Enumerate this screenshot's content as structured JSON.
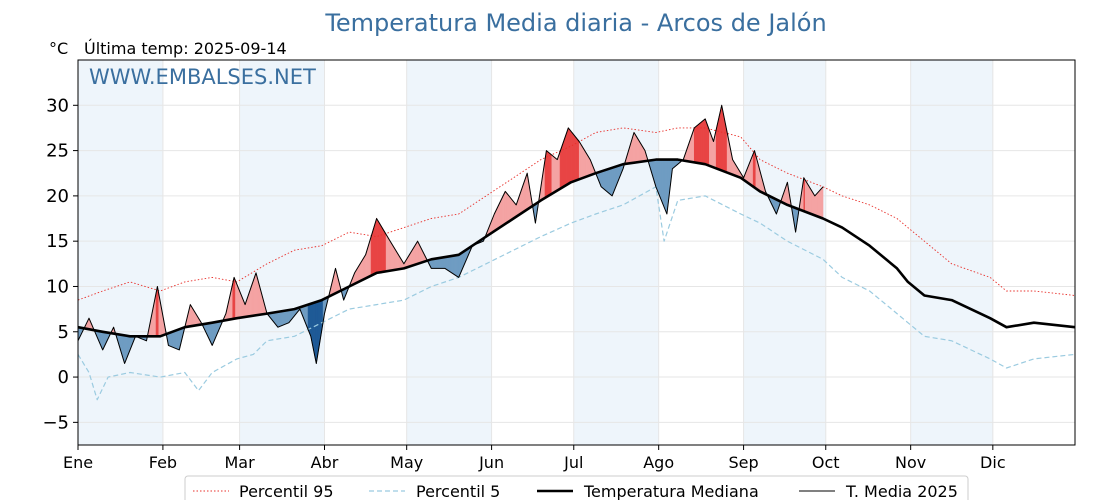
{
  "header": {
    "title": "Temperatura Media diaria - Arcos de Jalón",
    "unit": "°C",
    "last_temp": "Última temp: 2025-09-14",
    "watermark": "WWW.EMBALSES.NET"
  },
  "colors": {
    "title": "#3a6f9f",
    "p95": "#e8302b",
    "p5": "#9bcbe0",
    "median": "#000000",
    "current": "#000000",
    "above_fill": "#f4a3a3",
    "above_strong": "#e84545",
    "below_fill": "#6f9cc2",
    "below_strong": "#1f5a96",
    "band": "#eef5fb"
  },
  "chart_data": {
    "type": "line",
    "title": "Temperatura Media diaria - Arcos de Jalón",
    "ylabel": "°C",
    "ylim": [
      -7.5,
      35
    ],
    "yticks": [
      -5,
      0,
      5,
      10,
      15,
      20,
      25,
      30
    ],
    "xlim": [
      1,
      365
    ],
    "month_labels": [
      "Ene",
      "Feb",
      "Mar",
      "Abr",
      "May",
      "Jun",
      "Jul",
      "Ago",
      "Sep",
      "Oct",
      "Nov",
      "Dic"
    ],
    "month_start_days": [
      1,
      32,
      60,
      91,
      121,
      152,
      182,
      213,
      244,
      274,
      305,
      335
    ],
    "grid": true,
    "legend_position": "bottom",
    "series": [
      {
        "name": "Percentil 95",
        "style": "dotted-red",
        "points": [
          [
            1,
            8.5
          ],
          [
            10,
            9.5
          ],
          [
            20,
            10.5
          ],
          [
            31,
            9.5
          ],
          [
            40,
            10.5
          ],
          [
            50,
            11
          ],
          [
            59,
            10.5
          ],
          [
            70,
            12.5
          ],
          [
            80,
            14
          ],
          [
            90,
            14.5
          ],
          [
            100,
            16
          ],
          [
            110,
            15.5
          ],
          [
            120,
            16.5
          ],
          [
            130,
            17.5
          ],
          [
            140,
            18
          ],
          [
            150,
            20
          ],
          [
            160,
            22
          ],
          [
            170,
            24
          ],
          [
            181,
            25.5
          ],
          [
            190,
            27
          ],
          [
            200,
            27.5
          ],
          [
            212,
            27
          ],
          [
            220,
            27.5
          ],
          [
            230,
            27.5
          ],
          [
            243,
            26.5
          ],
          [
            250,
            24
          ],
          [
            260,
            22.5
          ],
          [
            273,
            21
          ],
          [
            280,
            20
          ],
          [
            290,
            19
          ],
          [
            300,
            17.5
          ],
          [
            304,
            16.5
          ],
          [
            310,
            15
          ],
          [
            320,
            12.5
          ],
          [
            334,
            11
          ],
          [
            340,
            9.5
          ],
          [
            350,
            9.5
          ],
          [
            365,
            9
          ]
        ]
      },
      {
        "name": "Percentil 5",
        "style": "dashed-lightblue",
        "points": [
          [
            1,
            2.5
          ],
          [
            5,
            0.5
          ],
          [
            8,
            -2.5
          ],
          [
            12,
            0
          ],
          [
            20,
            0.5
          ],
          [
            31,
            0
          ],
          [
            40,
            0.5
          ],
          [
            45,
            -1.5
          ],
          [
            50,
            0.5
          ],
          [
            59,
            2
          ],
          [
            65,
            2.5
          ],
          [
            70,
            4
          ],
          [
            80,
            4.5
          ],
          [
            90,
            6
          ],
          [
            100,
            7.5
          ],
          [
            110,
            8
          ],
          [
            120,
            8.5
          ],
          [
            130,
            10
          ],
          [
            140,
            11
          ],
          [
            150,
            12.5
          ],
          [
            160,
            14
          ],
          [
            170,
            15.5
          ],
          [
            181,
            17
          ],
          [
            190,
            18
          ],
          [
            200,
            19
          ],
          [
            212,
            21
          ],
          [
            215,
            15
          ],
          [
            220,
            19.5
          ],
          [
            230,
            20
          ],
          [
            243,
            18
          ],
          [
            250,
            17
          ],
          [
            260,
            15
          ],
          [
            273,
            13
          ],
          [
            280,
            11
          ],
          [
            290,
            9.5
          ],
          [
            300,
            7
          ],
          [
            304,
            6
          ],
          [
            310,
            4.5
          ],
          [
            320,
            4
          ],
          [
            334,
            2
          ],
          [
            340,
            1
          ],
          [
            350,
            2
          ],
          [
            365,
            2.5
          ]
        ]
      },
      {
        "name": "Temperatura Mediana",
        "style": "thick-black",
        "points": [
          [
            1,
            5.5
          ],
          [
            10,
            5
          ],
          [
            20,
            4.5
          ],
          [
            31,
            4.5
          ],
          [
            40,
            5.5
          ],
          [
            50,
            6
          ],
          [
            59,
            6.5
          ],
          [
            70,
            7
          ],
          [
            80,
            7.5
          ],
          [
            90,
            8.5
          ],
          [
            100,
            10
          ],
          [
            110,
            11.5
          ],
          [
            120,
            12
          ],
          [
            130,
            13
          ],
          [
            140,
            13.5
          ],
          [
            150,
            15.5
          ],
          [
            160,
            17.5
          ],
          [
            170,
            19.5
          ],
          [
            181,
            21.5
          ],
          [
            190,
            22.5
          ],
          [
            200,
            23.5
          ],
          [
            212,
            24
          ],
          [
            220,
            24
          ],
          [
            230,
            23.5
          ],
          [
            243,
            22
          ],
          [
            250,
            20.5
          ],
          [
            260,
            19
          ],
          [
            273,
            17.5
          ],
          [
            280,
            16.5
          ],
          [
            290,
            14.5
          ],
          [
            300,
            12
          ],
          [
            304,
            10.5
          ],
          [
            310,
            9
          ],
          [
            320,
            8.5
          ],
          [
            334,
            6.5
          ],
          [
            340,
            5.5
          ],
          [
            350,
            6
          ],
          [
            365,
            5.5
          ]
        ]
      },
      {
        "name": "T. Media 2025",
        "style": "thin-black",
        "points": [
          [
            1,
            4
          ],
          [
            5,
            6.5
          ],
          [
            10,
            3
          ],
          [
            14,
            5.5
          ],
          [
            18,
            1.5
          ],
          [
            22,
            4.5
          ],
          [
            26,
            4
          ],
          [
            30,
            10
          ],
          [
            34,
            3.5
          ],
          [
            38,
            3
          ],
          [
            42,
            8
          ],
          [
            46,
            6
          ],
          [
            50,
            3.5
          ],
          [
            55,
            7
          ],
          [
            58,
            11
          ],
          [
            62,
            8
          ],
          [
            66,
            11.5
          ],
          [
            70,
            7
          ],
          [
            74,
            5.5
          ],
          [
            78,
            6
          ],
          [
            82,
            7.5
          ],
          [
            86,
            4.5
          ],
          [
            88,
            1.5
          ],
          [
            91,
            7
          ],
          [
            95,
            12
          ],
          [
            98,
            8.5
          ],
          [
            102,
            11.5
          ],
          [
            106,
            13.5
          ],
          [
            110,
            17.5
          ],
          [
            115,
            15
          ],
          [
            120,
            12.5
          ],
          [
            125,
            15
          ],
          [
            130,
            12
          ],
          [
            135,
            12
          ],
          [
            140,
            11
          ],
          [
            145,
            14.5
          ],
          [
            149,
            15
          ],
          [
            153,
            18
          ],
          [
            157,
            20.5
          ],
          [
            161,
            19
          ],
          [
            165,
            22.5
          ],
          [
            168,
            17
          ],
          [
            172,
            25
          ],
          [
            176,
            24
          ],
          [
            180,
            27.5
          ],
          [
            184,
            26
          ],
          [
            188,
            24
          ],
          [
            192,
            21
          ],
          [
            196,
            20
          ],
          [
            200,
            23
          ],
          [
            204,
            27
          ],
          [
            208,
            25
          ],
          [
            212,
            21
          ],
          [
            216,
            18
          ],
          [
            218,
            23
          ],
          [
            222,
            24
          ],
          [
            226,
            27.5
          ],
          [
            230,
            28.5
          ],
          [
            233,
            26
          ],
          [
            236,
            30
          ],
          [
            240,
            24
          ],
          [
            244,
            22
          ],
          [
            248,
            25
          ],
          [
            252,
            20.5
          ],
          [
            256,
            18
          ],
          [
            260,
            21.5
          ],
          [
            263,
            16
          ],
          [
            266,
            22
          ],
          [
            270,
            20
          ],
          [
            273,
            21
          ]
        ]
      }
    ]
  },
  "legend": {
    "p95": "Percentil 95",
    "p5": "Percentil 5",
    "median": "Temperatura Mediana",
    "current": "T. Media 2025"
  }
}
